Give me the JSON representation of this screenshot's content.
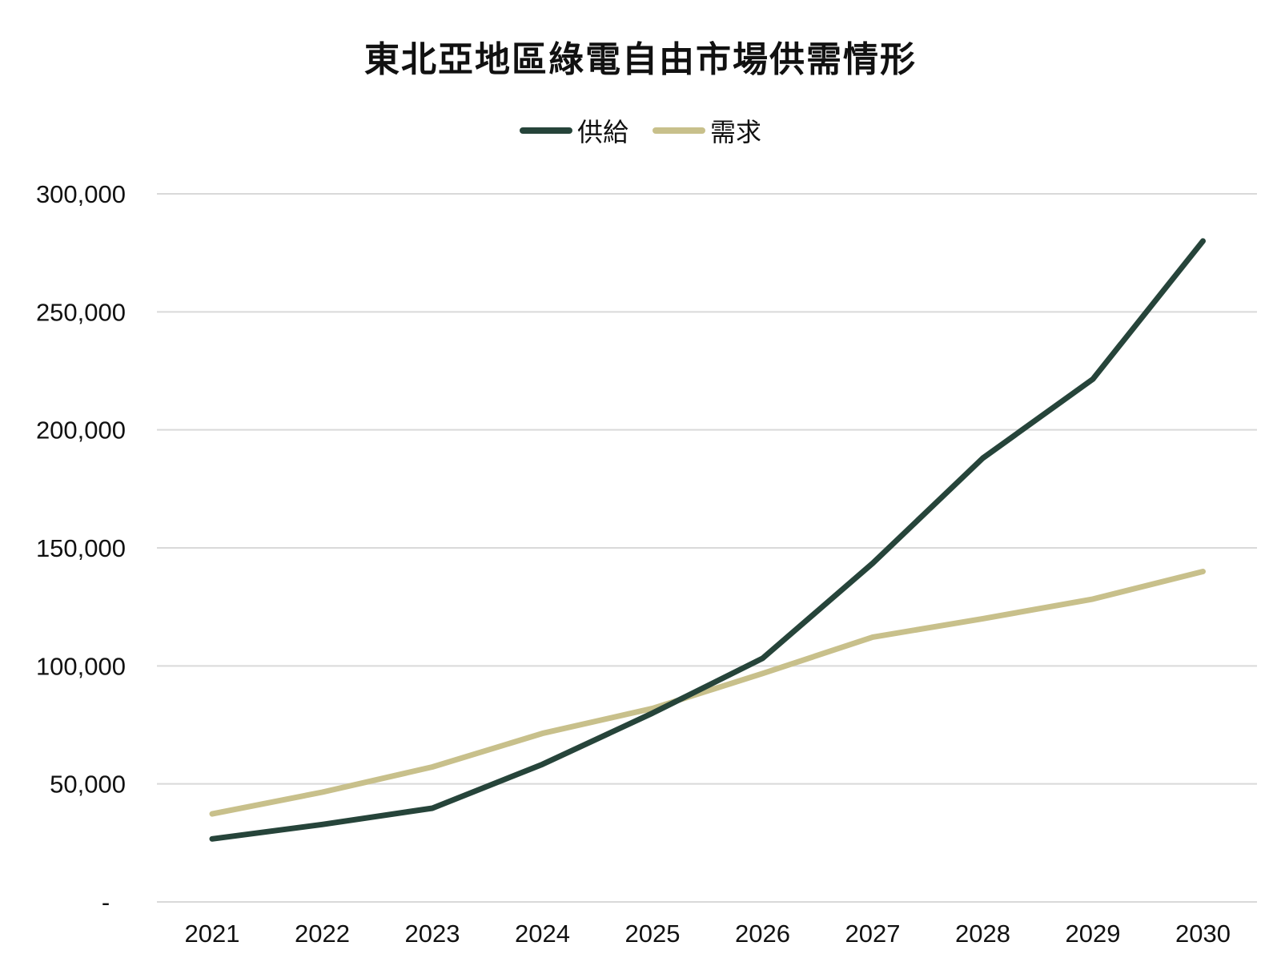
{
  "chart_data": {
    "type": "line",
    "title": "東北亞地區綠電自由市場供需情形",
    "xlabel": "",
    "ylabel": "",
    "categories": [
      "2021",
      "2022",
      "2023",
      "2024",
      "2025",
      "2026",
      "2027",
      "2028",
      "2029",
      "2030"
    ],
    "series": [
      {
        "name": "供給",
        "color": "#26443a",
        "values": [
          26700,
          32800,
          39700,
          58300,
          80000,
          103200,
          143500,
          188000,
          221500,
          280000
        ]
      },
      {
        "name": "需求",
        "color": "#c8c08b",
        "values": [
          37300,
          46500,
          57200,
          71400,
          82000,
          96800,
          112200,
          120000,
          128300,
          140000
        ]
      }
    ],
    "ylim": [
      0,
      300000
    ],
    "yticks": [
      0,
      50000,
      100000,
      150000,
      200000,
      250000,
      300000
    ],
    "ytick_labels": [
      "-",
      "50,000",
      "100,000",
      "150,000",
      "200,000",
      "250,000",
      "300,000"
    ],
    "grid": true,
    "gridline_color": "#d9d9d9",
    "legend_position": "top-center"
  }
}
